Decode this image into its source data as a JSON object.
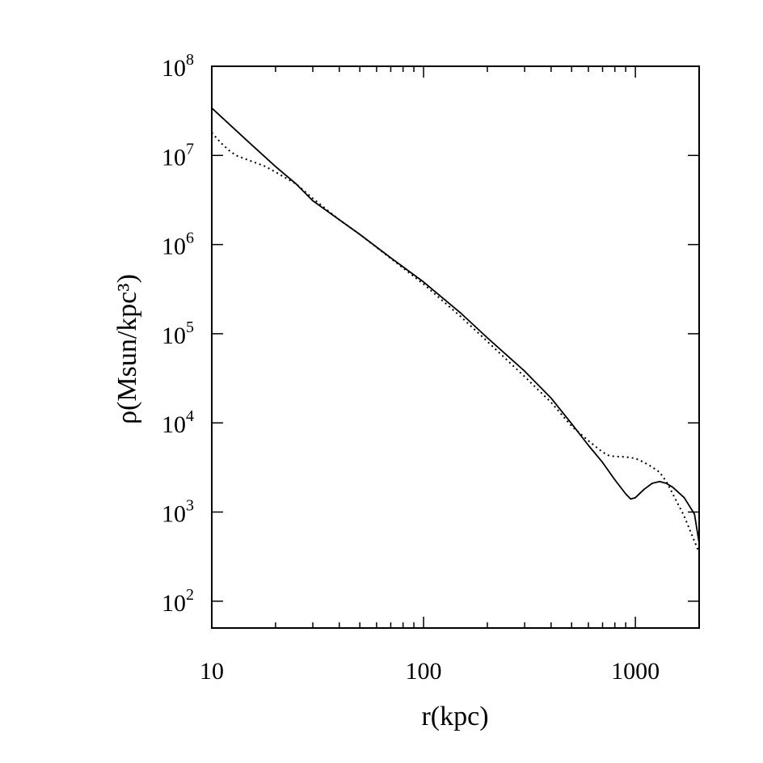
{
  "chart_data": {
    "type": "line",
    "title": "",
    "xlabel": "r(kpc)",
    "ylabel": "ρ(Msun/kpc³)",
    "x_scale": "log",
    "y_scale": "log",
    "xlim": [
      10,
      2000
    ],
    "ylim": [
      50,
      100000000
    ],
    "x_ticks": [
      {
        "value": 10,
        "label": "10"
      },
      {
        "value": 100,
        "label": "100"
      },
      {
        "value": 1000,
        "label": "1000"
      }
    ],
    "y_ticks": [
      {
        "value": 100,
        "base": "10",
        "exp": "2"
      },
      {
        "value": 1000,
        "base": "10",
        "exp": "3"
      },
      {
        "value": 10000,
        "base": "10",
        "exp": "4"
      },
      {
        "value": 100000,
        "base": "10",
        "exp": "5"
      },
      {
        "value": 1000000,
        "base": "10",
        "exp": "6"
      },
      {
        "value": 10000000,
        "base": "10",
        "exp": "7"
      },
      {
        "value": 100000000,
        "base": "10",
        "exp": "8"
      }
    ],
    "grid": false,
    "legend": "none",
    "series": [
      {
        "style": "solid",
        "color": "#000000",
        "x": [
          10,
          15,
          20,
          25,
          30,
          40,
          50,
          70,
          100,
          150,
          200,
          300,
          400,
          500,
          600,
          700,
          800,
          900,
          950,
          1000,
          1100,
          1200,
          1300,
          1400,
          1500,
          1700,
          1900,
          2000
        ],
        "y": [
          34000000,
          14000000,
          7500000,
          4800000,
          3100000,
          1900000,
          1300000,
          710000,
          380000,
          170000,
          90000,
          38000,
          19000,
          9800,
          5600,
          3600,
          2300,
          1600,
          1400,
          1450,
          1800,
          2100,
          2200,
          2100,
          1900,
          1450,
          950,
          450
        ]
      },
      {
        "style": "dotted",
        "color": "#000000",
        "x": [
          10,
          11,
          12,
          13,
          15,
          18,
          20,
          25,
          30,
          40,
          50,
          70,
          100,
          150,
          200,
          300,
          400,
          500,
          600,
          700,
          750,
          800,
          900,
          1000,
          1100,
          1200,
          1300,
          1400,
          1500,
          1700,
          2000
        ],
        "y": [
          18000000,
          14000000,
          11500000,
          10000000,
          8800000,
          7500000,
          6500000,
          4800000,
          3300000,
          1900000,
          1300000,
          700000,
          360000,
          155000,
          82000,
          33000,
          17000,
          9200,
          6300,
          4700,
          4300,
          4200,
          4150,
          4000,
          3600,
          3200,
          2800,
          2200,
          1600,
          900,
          350
        ]
      }
    ]
  }
}
